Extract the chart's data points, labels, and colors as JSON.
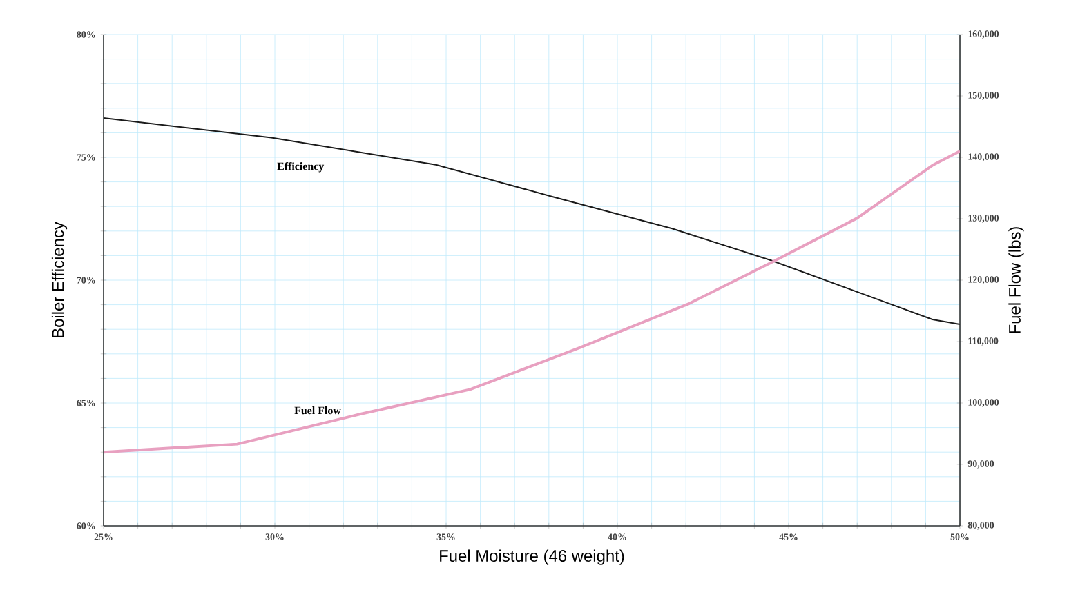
{
  "chart_data": {
    "type": "line",
    "xlabel": "Fuel Moisture (46 weight)",
    "ylabel": "Boiler Efficiency",
    "y2label": "Fuel Flow (lbs)",
    "xlim": [
      25,
      50
    ],
    "xticks": [
      {
        "value": 25,
        "label": "25%"
      },
      {
        "value": 26,
        "label": null
      },
      {
        "value": 27,
        "label": null
      },
      {
        "value": 28,
        "label": null
      },
      {
        "value": 29,
        "label": null
      },
      {
        "value": 30,
        "label": "30%"
      },
      {
        "value": 31,
        "label": null
      },
      {
        "value": 32,
        "label": null
      },
      {
        "value": 33,
        "label": null
      },
      {
        "value": 34,
        "label": null
      },
      {
        "value": 35,
        "label": "35%"
      },
      {
        "value": 36,
        "label": null
      },
      {
        "value": 37,
        "label": null
      },
      {
        "value": 38,
        "label": null
      },
      {
        "value": 39,
        "label": null
      },
      {
        "value": 40,
        "label": "40%"
      },
      {
        "value": 41,
        "label": null
      },
      {
        "value": 42,
        "label": null
      },
      {
        "value": 43,
        "label": null
      },
      {
        "value": 44,
        "label": null
      },
      {
        "value": 45,
        "label": "45%"
      },
      {
        "value": 46,
        "label": null
      },
      {
        "value": 47,
        "label": null
      },
      {
        "value": 48,
        "label": null
      },
      {
        "value": 49,
        "label": null
      },
      {
        "value": 50,
        "label": "50%"
      }
    ],
    "ylim": [
      60,
      80
    ],
    "yticks": [
      {
        "value": 60,
        "label": "60%"
      },
      {
        "value": 61,
        "label": null
      },
      {
        "value": 62,
        "label": null
      },
      {
        "value": 63,
        "label": null
      },
      {
        "value": 64,
        "label": null
      },
      {
        "value": 65,
        "label": "65%"
      },
      {
        "value": 66,
        "label": null
      },
      {
        "value": 67,
        "label": null
      },
      {
        "value": 68,
        "label": null
      },
      {
        "value": 69,
        "label": null
      },
      {
        "value": 70,
        "label": "70%"
      },
      {
        "value": 71,
        "label": null
      },
      {
        "value": 72,
        "label": null
      },
      {
        "value": 73,
        "label": null
      },
      {
        "value": 74,
        "label": null
      },
      {
        "value": 75,
        "label": "75%"
      },
      {
        "value": 76,
        "label": null
      },
      {
        "value": 77,
        "label": null
      },
      {
        "value": 78,
        "label": null
      },
      {
        "value": 79,
        "label": null
      },
      {
        "value": 80,
        "label": "80%"
      }
    ],
    "y2lim": [
      80000,
      160000
    ],
    "y2ticks": [
      {
        "value": 80000,
        "label": "80,000"
      },
      {
        "value": 90000,
        "label": "90,000"
      },
      {
        "value": 100000,
        "label": "100,000"
      },
      {
        "value": 110000,
        "label": "110,000"
      },
      {
        "value": 120000,
        "label": "120,000"
      },
      {
        "value": 130000,
        "label": "130,000"
      },
      {
        "value": 140000,
        "label": "140,000"
      },
      {
        "value": 150000,
        "label": "150,000"
      },
      {
        "value": 160000,
        "label": "160,000"
      }
    ],
    "grid": true,
    "marker": "none",
    "line_style": "solid",
    "series": [
      {
        "color": "#1a1a1a",
        "x": [
          25,
          29.9,
          34.7,
          38.1,
          41.6,
          44.5,
          49.2,
          50
        ],
        "values": [
          76.6,
          75.8,
          74.7,
          73.4,
          72.1,
          70.8,
          68.4,
          68.2
        ]
      },
      {
        "color": "#e8a0c0",
        "axis": "y2",
        "x": [
          25,
          28.9,
          32.5,
          35.7,
          38.9,
          42.1,
          44.5,
          47,
          49.2,
          50
        ],
        "values": [
          92000,
          93300,
          98200,
          102200,
          109000,
          116200,
          122900,
          130100,
          138700,
          141000
        ]
      }
    ],
    "annotations": [
      "Efficiency",
      "Fuel Flow"
    ]
  }
}
